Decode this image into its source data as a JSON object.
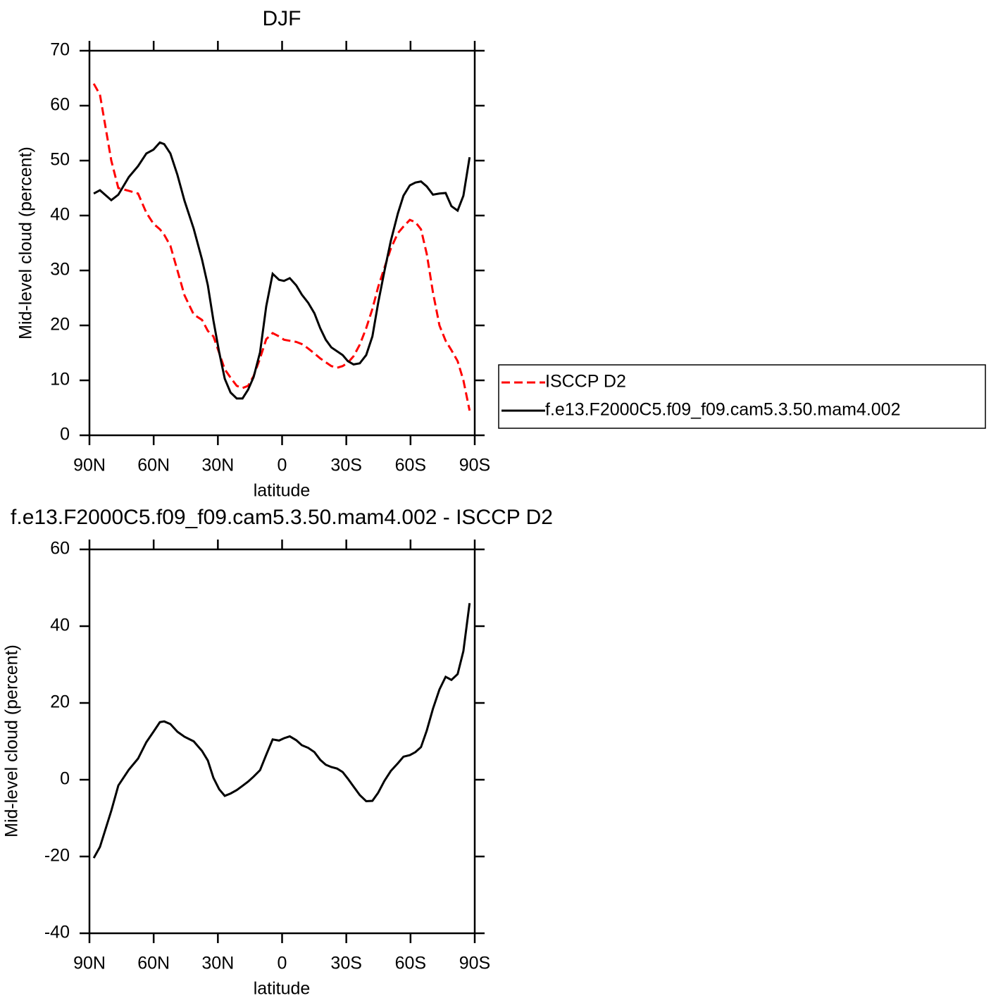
{
  "chart_data": [
    {
      "type": "line",
      "title": "DJF",
      "xlabel": "latitude",
      "ylabel": "Mid-level cloud (percent)",
      "x": [
        88.0,
        85.1,
        79.8,
        76.5,
        71.6,
        67.3,
        63.4,
        60.1,
        57.1,
        55.1,
        52.2,
        48.9,
        45.6,
        41.3,
        37.4,
        34.7,
        32.1,
        29.4,
        26.8,
        24.1,
        21.2,
        18.5,
        15.9,
        13.3,
        10.3,
        7.4,
        4.4,
        1.4,
        -0.9,
        -3.6,
        -6.6,
        -9.2,
        -12.2,
        -15.1,
        -17.8,
        -20.4,
        -23.0,
        -25.7,
        -28.3,
        -30.7,
        -33.4,
        -36.3,
        -39.3,
        -42.2,
        -44.9,
        -47.8,
        -50.8,
        -54.1,
        -56.7,
        -59.7,
        -62.3,
        -64.9,
        -67.6,
        -70.5,
        -73.5,
        -76.4,
        -79.1,
        -82.0,
        -84.7,
        -87.6
      ],
      "xlim": [
        90,
        -90
      ],
      "xticks": [
        {
          "value": 90,
          "label": "90N"
        },
        {
          "value": 60,
          "label": "60N"
        },
        {
          "value": 30,
          "label": "30N"
        },
        0,
        {
          "value": -30,
          "label": "30S"
        },
        {
          "value": -60,
          "label": "60S"
        },
        {
          "value": -90,
          "label": "90S"
        }
      ],
      "ylim": [
        0,
        70
      ],
      "yticks": [
        0,
        10,
        20,
        30,
        40,
        50,
        60,
        70
      ],
      "legend": "right",
      "series": [
        {
          "name": "ISCCP D2",
          "color": "#ff0000",
          "linestyle": "dashed",
          "values": [
            64,
            62,
            50,
            45,
            44.5,
            44,
            40.5,
            38.5,
            37.5,
            36.5,
            34.5,
            30,
            25.5,
            22,
            21,
            19,
            18,
            15,
            12,
            10.5,
            9,
            8.6,
            9,
            10.8,
            14,
            17.5,
            18.6,
            18,
            17.4,
            17.2,
            17,
            16.6,
            15.8,
            14.9,
            14,
            13.3,
            12.6,
            12.3,
            12.6,
            13.2,
            14.4,
            16.5,
            19.5,
            23,
            27,
            30.5,
            34,
            36.8,
            38,
            39.2,
            38.8,
            37.5,
            33,
            26,
            20,
            17.2,
            15.5,
            13.5,
            10,
            4.5
          ]
        },
        {
          "name": "f.e13.F2000C5.f09_f09.cam5.3.50.mam4.002",
          "color": "#000000",
          "linestyle": "solid",
          "values": [
            44,
            44.6,
            42.8,
            43.8,
            47,
            49,
            51.3,
            52,
            53.3,
            53,
            51.3,
            47.4,
            42.7,
            37.6,
            32,
            27.3,
            20.9,
            15.1,
            10.3,
            7.8,
            6.7,
            6.7,
            8.3,
            10.6,
            15.1,
            23.5,
            29.4,
            28.3,
            28.1,
            28.6,
            27.3,
            25.6,
            24.1,
            22.2,
            19.5,
            17.4,
            16,
            15.3,
            14.6,
            13.5,
            12.9,
            13.1,
            14.6,
            18,
            24.1,
            29.9,
            35.4,
            40.4,
            43.6,
            45.5,
            46,
            46.2,
            45.3,
            43.8,
            44,
            44.1,
            41.7,
            40.9,
            43.6,
            50.6
          ]
        }
      ]
    },
    {
      "type": "line",
      "title": "f.e13.F2000C5.f09_f09.cam5.3.50.mam4.002 - ISCCP D2",
      "xlabel": "latitude",
      "ylabel": "Mid-level cloud (percent)",
      "x": [
        88.0,
        85.1,
        79.8,
        76.5,
        71.6,
        67.3,
        63.4,
        60.1,
        57.1,
        55.1,
        52.2,
        48.9,
        45.6,
        41.3,
        37.4,
        34.7,
        32.1,
        29.4,
        26.8,
        24.1,
        21.2,
        18.5,
        15.9,
        13.3,
        10.3,
        7.4,
        4.4,
        1.4,
        -0.9,
        -3.6,
        -6.6,
        -9.2,
        -12.2,
        -15.1,
        -17.8,
        -20.4,
        -23.0,
        -25.7,
        -28.3,
        -30.7,
        -33.4,
        -36.3,
        -39.3,
        -42.2,
        -44.9,
        -47.8,
        -50.8,
        -54.1,
        -56.7,
        -59.7,
        -62.3,
        -64.9,
        -67.6,
        -70.5,
        -73.5,
        -76.4,
        -79.1,
        -82.0,
        -84.7,
        -87.6
      ],
      "xlim": [
        90,
        -90
      ],
      "xticks": [
        {
          "value": 90,
          "label": "90N"
        },
        {
          "value": 60,
          "label": "60N"
        },
        {
          "value": 30,
          "label": "30N"
        },
        0,
        {
          "value": -30,
          "label": "30S"
        },
        {
          "value": -60,
          "label": "60S"
        },
        {
          "value": -90,
          "label": "90S"
        }
      ],
      "ylim": [
        -40,
        60
      ],
      "yticks": [
        -40,
        -20,
        0,
        20,
        40,
        60
      ],
      "series": [
        {
          "color": "#000000",
          "linestyle": "solid",
          "values": [
            -20.4,
            -17.5,
            -8.1,
            -1.5,
            2.6,
            5.5,
            9.8,
            12.5,
            15,
            15.2,
            14.5,
            12.5,
            11.2,
            10,
            7.5,
            5,
            0.5,
            -2.5,
            -4.2,
            -3.6,
            -2.7,
            -1.6,
            -0.5,
            0.8,
            2.5,
            6.5,
            10.5,
            10.2,
            10.8,
            11.3,
            10.3,
            9,
            8.3,
            7.2,
            5.2,
            3.9,
            3.3,
            2.9,
            2,
            0.3,
            -1.8,
            -4,
            -5.6,
            -5.5,
            -3.4,
            -0.3,
            2.3,
            4.3,
            6,
            6.4,
            7.2,
            8.5,
            12.8,
            18.5,
            23.5,
            26.8,
            26,
            27.5,
            33.5,
            46
          ]
        }
      ]
    }
  ]
}
